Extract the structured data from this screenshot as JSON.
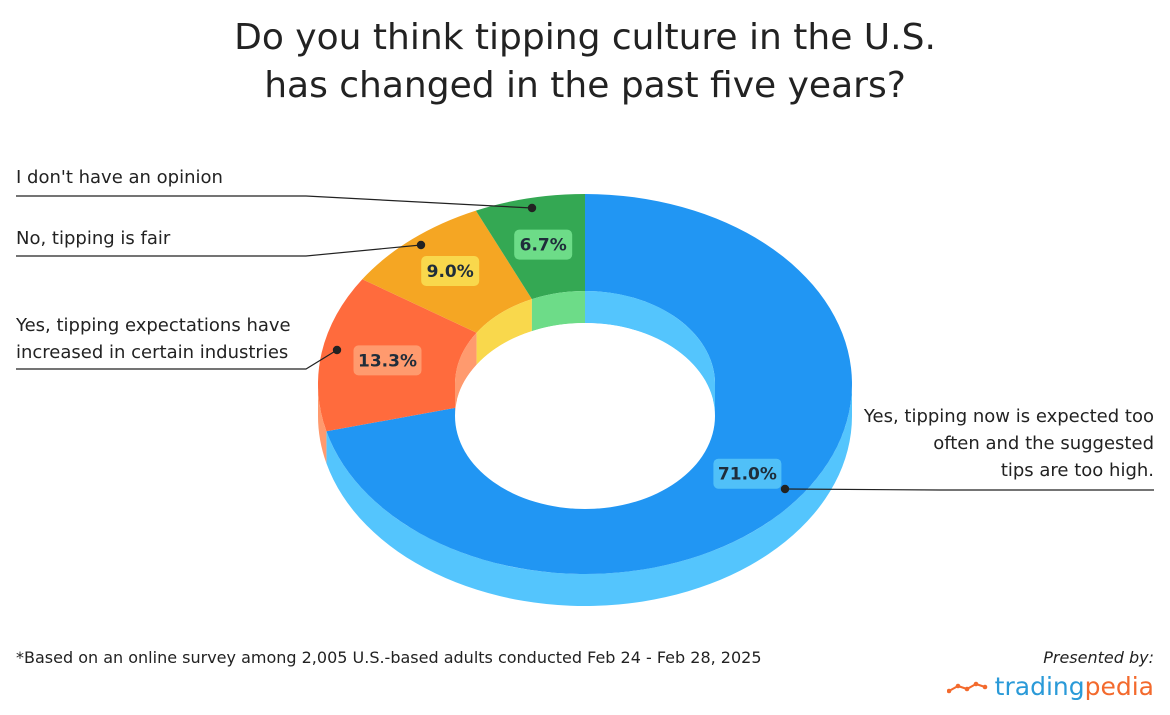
{
  "chart_data": {
    "type": "pie",
    "title_lines": [
      "Do you think tipping culture in the U.S.",
      "has changed in the past five years?"
    ],
    "slices": [
      {
        "label": "Yes, tipping now is expected too often and the suggested tips are too high.",
        "label_lines": [
          "Yes, tipping now is expected too",
          "often and the suggested",
          "tips are too high."
        ],
        "value": 71.0,
        "value_label": "71.0%",
        "color": "#2196f3",
        "side_color": "#54c5fd",
        "badge_color": "#50c0f8"
      },
      {
        "label": "Yes, tipping expectations have increased in certain industries",
        "label_lines": [
          "Yes, tipping expectations have",
          "increased in certain industries"
        ],
        "value": 13.3,
        "value_label": "13.3%",
        "color": "#ff6b3d",
        "side_color": "#ff9a6e",
        "badge_color": "#ff9a6e"
      },
      {
        "label": "No, tipping is fair",
        "label_lines": [
          "No, tipping is fair"
        ],
        "value": 9.0,
        "value_label": "9.0%",
        "color": "#f5a623",
        "side_color": "#f9d84c",
        "badge_color": "#f9d84c"
      },
      {
        "label": "I don't have an opinion",
        "label_lines": [
          "I don't have an opinion"
        ],
        "value": 6.7,
        "value_label": "6.7%",
        "color": "#34a853",
        "side_color": "#6ddc88",
        "badge_color": "#6ddc88"
      }
    ]
  },
  "footnote": "*Based on an online survey among 2,005 U.S.-based adults conducted Feb 24 - Feb 28, 2025",
  "presented_by": "Presented by:",
  "logo": {
    "part1": "trading",
    "part2": "pedia",
    "icon": "trend-line-icon"
  }
}
